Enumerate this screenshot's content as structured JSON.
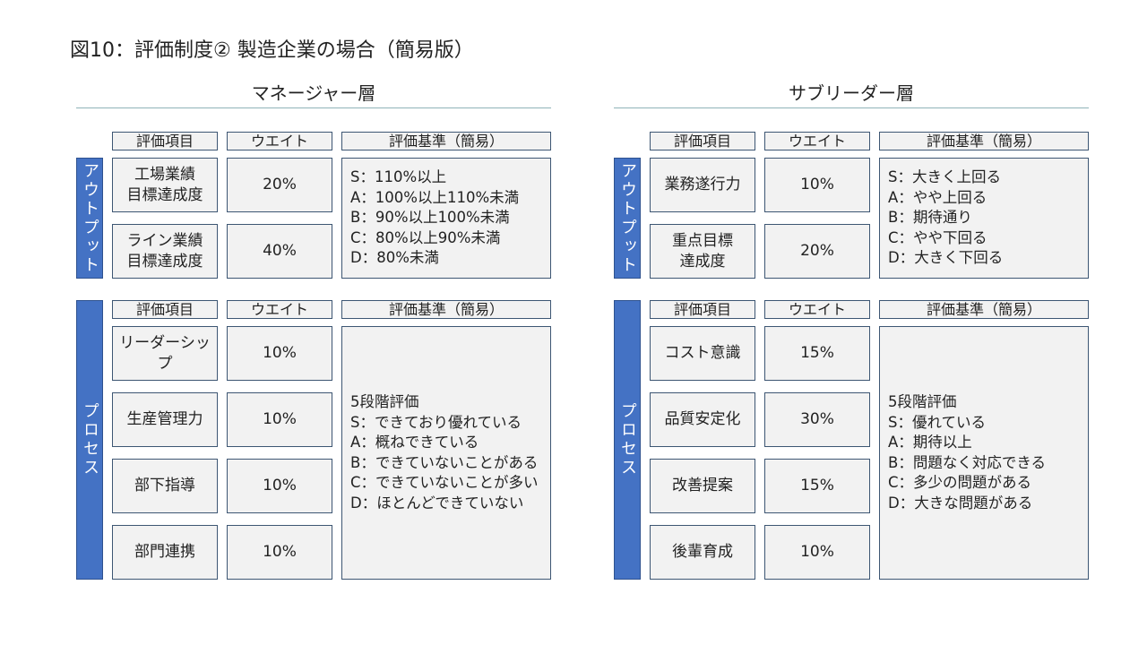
{
  "title": "図10：評価制度② 製造企業の場合（簡易版）",
  "panels": [
    {
      "heading": "マネージャー層",
      "sections": [
        {
          "label": "アウトプット",
          "columns": [
            "評価項目",
            "ウエイト",
            "評価基準（簡易）"
          ],
          "rows": [
            {
              "item": [
                "工場業績",
                "目標達成度"
              ],
              "weight": "20%"
            },
            {
              "item": [
                "ライン業績",
                "目標達成度"
              ],
              "weight": "40%"
            }
          ],
          "criteria": [
            "S：110%以上",
            "A：100%以上110%未満",
            "B：90%以上100%未満",
            "C：80%以上90%未満",
            "D：80%未満"
          ]
        },
        {
          "label": "プロセス",
          "columns": [
            "評価項目",
            "ウエイト",
            "評価基準（簡易）"
          ],
          "rows": [
            {
              "item": [
                "リーダーシップ"
              ],
              "weight": "10%"
            },
            {
              "item": [
                "生産管理力"
              ],
              "weight": "10%"
            },
            {
              "item": [
                "部下指導"
              ],
              "weight": "10%"
            },
            {
              "item": [
                "部門連携"
              ],
              "weight": "10%"
            }
          ],
          "criteria": [
            "5段階評価",
            "S：できており優れている",
            "A：概ねできている",
            "B：できていないことがある",
            "C：できていないことが多い",
            "D：ほとんどできていない"
          ]
        }
      ]
    },
    {
      "heading": "サブリーダー層",
      "sections": [
        {
          "label": "アウトプット",
          "columns": [
            "評価項目",
            "ウエイト",
            "評価基準（簡易）"
          ],
          "rows": [
            {
              "item": [
                "業務遂行力"
              ],
              "weight": "10%"
            },
            {
              "item": [
                "重点目標",
                "達成度"
              ],
              "weight": "20%"
            }
          ],
          "criteria": [
            "S：大きく上回る",
            "A：やや上回る",
            "B：期待通り",
            "C：やや下回る",
            "D：大きく下回る"
          ]
        },
        {
          "label": "プロセス",
          "columns": [
            "評価項目",
            "ウエイト",
            "評価基準（簡易）"
          ],
          "rows": [
            {
              "item": [
                "コスト意識"
              ],
              "weight": "15%"
            },
            {
              "item": [
                "品質安定化"
              ],
              "weight": "30%"
            },
            {
              "item": [
                "改善提案"
              ],
              "weight": "15%"
            },
            {
              "item": [
                "後輩育成"
              ],
              "weight": "10%"
            }
          ],
          "criteria": [
            "5段階評価",
            "S：優れている",
            "A：期待以上",
            "B：問題なく対応できる",
            "C：多少の問題がある",
            "D：大きな問題がある"
          ]
        }
      ]
    }
  ]
}
